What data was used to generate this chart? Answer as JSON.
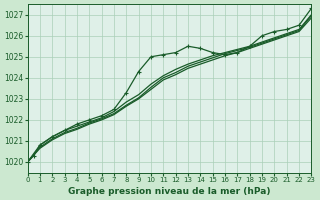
{
  "bg_color": "#cce8d0",
  "plot_bg_color": "#dff0e8",
  "grid_color": "#aacfb8",
  "line_color": "#1a5c2a",
  "title": "Graphe pression niveau de la mer (hPa)",
  "xlim": [
    0,
    23
  ],
  "ylim": [
    1019.5,
    1027.5
  ],
  "yticks": [
    1020,
    1021,
    1022,
    1023,
    1024,
    1025,
    1026,
    1027
  ],
  "xticks": [
    0,
    1,
    2,
    3,
    4,
    5,
    6,
    7,
    8,
    9,
    10,
    11,
    12,
    13,
    14,
    15,
    16,
    17,
    18,
    19,
    20,
    21,
    22,
    23
  ],
  "series1": {
    "x": [
      0,
      0.5,
      1,
      2,
      3,
      4,
      5,
      6,
      7,
      8,
      9,
      10,
      11,
      12,
      13,
      14,
      15,
      16,
      17,
      18,
      19,
      20,
      21,
      22,
      23
    ],
    "y": [
      1020.0,
      1020.3,
      1020.8,
      1021.2,
      1021.5,
      1021.8,
      1022.0,
      1022.2,
      1022.5,
      1023.3,
      1024.3,
      1025.0,
      1025.1,
      1025.2,
      1025.5,
      1025.4,
      1025.2,
      1025.1,
      1025.2,
      1025.5,
      1026.0,
      1026.2,
      1026.3,
      1026.5,
      1027.3
    ]
  },
  "series2": {
    "x": [
      0,
      1,
      2,
      3,
      4,
      5,
      6,
      7,
      8,
      9,
      10,
      11,
      12,
      13,
      14,
      15,
      16,
      17,
      18,
      19,
      20,
      21,
      22,
      23
    ],
    "y": [
      1020.0,
      1020.8,
      1021.2,
      1021.5,
      1021.7,
      1021.9,
      1022.1,
      1022.4,
      1022.85,
      1023.2,
      1023.7,
      1024.1,
      1024.4,
      1024.65,
      1024.85,
      1025.05,
      1025.2,
      1025.35,
      1025.5,
      1025.7,
      1025.9,
      1026.1,
      1026.3,
      1027.0
    ]
  },
  "series3": {
    "x": [
      0,
      1,
      2,
      3,
      4,
      5,
      6,
      7,
      8,
      9,
      10,
      11,
      12,
      13,
      14,
      15,
      16,
      17,
      18,
      19,
      20,
      21,
      22,
      23
    ],
    "y": [
      1020.0,
      1020.7,
      1021.1,
      1021.4,
      1021.6,
      1021.85,
      1022.05,
      1022.3,
      1022.7,
      1023.05,
      1023.55,
      1024.0,
      1024.25,
      1024.55,
      1024.75,
      1024.95,
      1025.15,
      1025.3,
      1025.45,
      1025.65,
      1025.85,
      1026.05,
      1026.25,
      1026.95
    ]
  },
  "series4": {
    "x": [
      0,
      1,
      2,
      3,
      4,
      5,
      6,
      7,
      8,
      9,
      10,
      11,
      12,
      13,
      14,
      15,
      16,
      17,
      18,
      19,
      20,
      21,
      22,
      23
    ],
    "y": [
      1020.0,
      1020.65,
      1021.05,
      1021.35,
      1021.55,
      1021.8,
      1022.0,
      1022.25,
      1022.65,
      1023.0,
      1023.45,
      1023.9,
      1024.15,
      1024.45,
      1024.65,
      1024.85,
      1025.05,
      1025.2,
      1025.4,
      1025.6,
      1025.8,
      1026.0,
      1026.2,
      1026.85
    ]
  }
}
